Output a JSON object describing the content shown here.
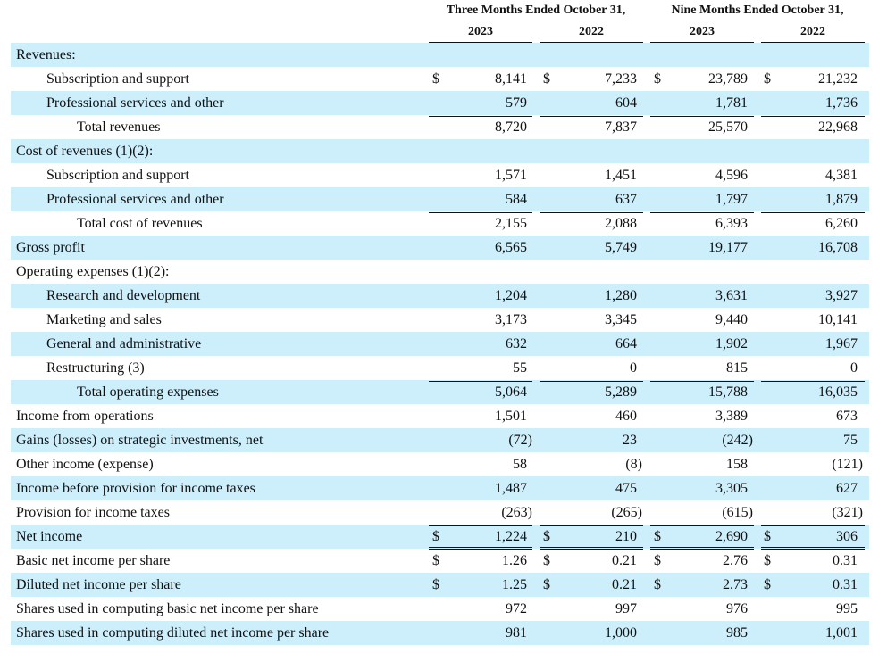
{
  "header": {
    "periods": [
      {
        "title": "Three Months Ended October 31,",
        "years": [
          "2023",
          "2022"
        ]
      },
      {
        "title": "Nine Months Ended October 31,",
        "years": [
          "2023",
          "2022"
        ]
      }
    ]
  },
  "table": {
    "rows": [
      {
        "label": "Revenues:"
      },
      {
        "label": "Subscription and support",
        "currency": [
          "$",
          "$",
          "$",
          "$"
        ],
        "values": [
          "8,141",
          "7,233",
          "23,789",
          "21,232"
        ]
      },
      {
        "label": "Professional services and other",
        "values": [
          "579",
          "604",
          "1,781",
          "1,736"
        ]
      },
      {
        "label": "Total revenues",
        "values": [
          "8,720",
          "7,837",
          "25,570",
          "22,968"
        ]
      },
      {
        "label": "Cost of revenues (1)(2):"
      },
      {
        "label": "Subscription and support",
        "values": [
          "1,571",
          "1,451",
          "4,596",
          "4,381"
        ]
      },
      {
        "label": "Professional services and other",
        "values": [
          "584",
          "637",
          "1,797",
          "1,879"
        ]
      },
      {
        "label": "Total cost of revenues",
        "values": [
          "2,155",
          "2,088",
          "6,393",
          "6,260"
        ]
      },
      {
        "label": "Gross profit",
        "values": [
          "6,565",
          "5,749",
          "19,177",
          "16,708"
        ]
      },
      {
        "label": "Operating expenses (1)(2):"
      },
      {
        "label": "Research and development",
        "values": [
          "1,204",
          "1,280",
          "3,631",
          "3,927"
        ]
      },
      {
        "label": "Marketing and sales",
        "values": [
          "3,173",
          "3,345",
          "9,440",
          "10,141"
        ]
      },
      {
        "label": "General and administrative",
        "values": [
          "632",
          "664",
          "1,902",
          "1,967"
        ]
      },
      {
        "label": "Restructuring (3)",
        "values": [
          "55",
          "0",
          "815",
          "0"
        ]
      },
      {
        "label": "Total operating expenses",
        "values": [
          "5,064",
          "5,289",
          "15,788",
          "16,035"
        ]
      },
      {
        "label": "Income from operations",
        "values": [
          "1,501",
          "460",
          "3,389",
          "673"
        ]
      },
      {
        "label": "Gains (losses) on strategic investments, net",
        "values": [
          "(72)",
          "23",
          "(242)",
          "75"
        ]
      },
      {
        "label": "Other income (expense)",
        "values": [
          "58",
          "(8)",
          "158",
          "(121)"
        ]
      },
      {
        "label": "Income before provision for income taxes",
        "values": [
          "1,487",
          "475",
          "3,305",
          "627"
        ]
      },
      {
        "label": "Provision for income taxes",
        "values": [
          "(263)",
          "(265)",
          "(615)",
          "(321)"
        ]
      },
      {
        "label": "Net income",
        "currency": [
          "$",
          "$",
          "$",
          "$"
        ],
        "values": [
          "1,224",
          "210",
          "2,690",
          "306"
        ]
      },
      {
        "label": "Basic net income per share",
        "currency": [
          "$",
          "$",
          "$",
          "$"
        ],
        "values": [
          "1.26",
          "0.21",
          "2.76",
          "0.31"
        ]
      },
      {
        "label": "Diluted net income per share",
        "currency": [
          "$",
          "$",
          "$",
          "$"
        ],
        "values": [
          "1.25",
          "0.21",
          "2.73",
          "0.31"
        ]
      },
      {
        "label": "Shares used in computing basic net income per share",
        "values": [
          "972",
          "997",
          "976",
          "995"
        ]
      },
      {
        "label": "Shares used in computing diluted net income per share",
        "values": [
          "981",
          "1,000",
          "985",
          "1,001"
        ]
      }
    ]
  }
}
